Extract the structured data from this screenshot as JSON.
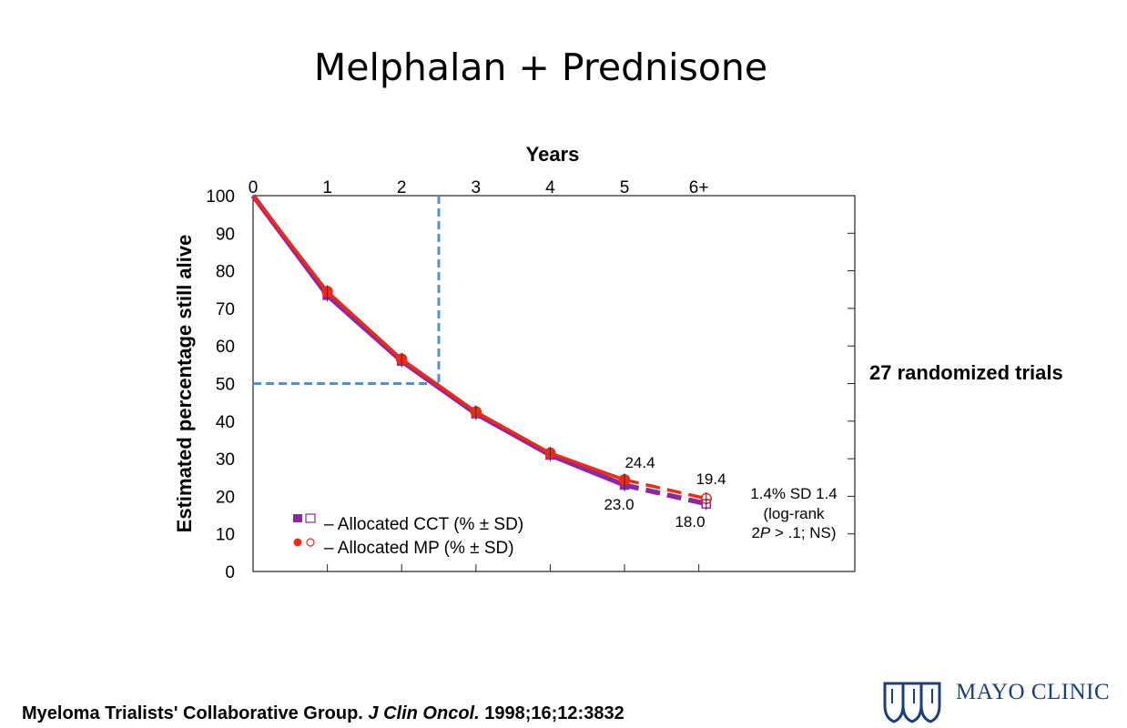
{
  "slide": {
    "title": "Melphalan + Prednisone",
    "side_note": "27 randomized trials",
    "citation": {
      "authors": "Myeloma Trialists' Collaborative Group.",
      "journal": "J Clin Oncol.",
      "ref": "1998;16;12:3832"
    },
    "logo_text": "MAYO CLINIC"
  },
  "chart_data": {
    "type": "line",
    "xlabel": "Years",
    "ylabel": "Estimated percentage still alive",
    "x_ticks": [
      "0",
      "1",
      "2",
      "3",
      "4",
      "5",
      "6+"
    ],
    "y_ticks": [
      "0",
      "10",
      "20",
      "30",
      "40",
      "50",
      "60",
      "70",
      "80",
      "90",
      "100"
    ],
    "xlim": [
      0,
      8.1
    ],
    "ylim": [
      0,
      100
    ],
    "x_axis_position": "top",
    "colors": {
      "cct": "#8b2a9b",
      "mp": "#ee2a1b",
      "reference": "#5b8ec9"
    },
    "series": [
      {
        "name": "Allocated CCT (% ± SD)",
        "key": "cct",
        "x": [
          0,
          1,
          2,
          3,
          4,
          5,
          6.1
        ],
        "y": [
          100,
          73.5,
          56,
          42,
          31,
          23,
          18
        ],
        "dashed_from_index": 5
      },
      {
        "name": "Allocated MP (% ± SD)",
        "key": "mp",
        "x": [
          0,
          1,
          2,
          3,
          4,
          5,
          6.1
        ],
        "y": [
          100,
          74.5,
          56.5,
          42.5,
          31.5,
          24.4,
          19.4
        ],
        "dashed_from_index": 5
      }
    ],
    "reference_lines": {
      "x": 2.5,
      "y": 50
    },
    "annotations": {
      "mp_5yr": "24.4",
      "cct_5yr": "23.0",
      "mp_6yr": "19.4",
      "cct_6yr": "18.0",
      "difference_line1": "1.4% SD 1.4",
      "difference_line2": "(log-rank",
      "difference_line3_pre": "2",
      "difference_line3_italic": "P",
      "difference_line3_post": " > .1; NS)"
    },
    "legend": {
      "position": "bottom-left",
      "cct_label": "– Allocated CCT (% ± SD)",
      "mp_label": "– Allocated MP (% ± SD)"
    }
  }
}
